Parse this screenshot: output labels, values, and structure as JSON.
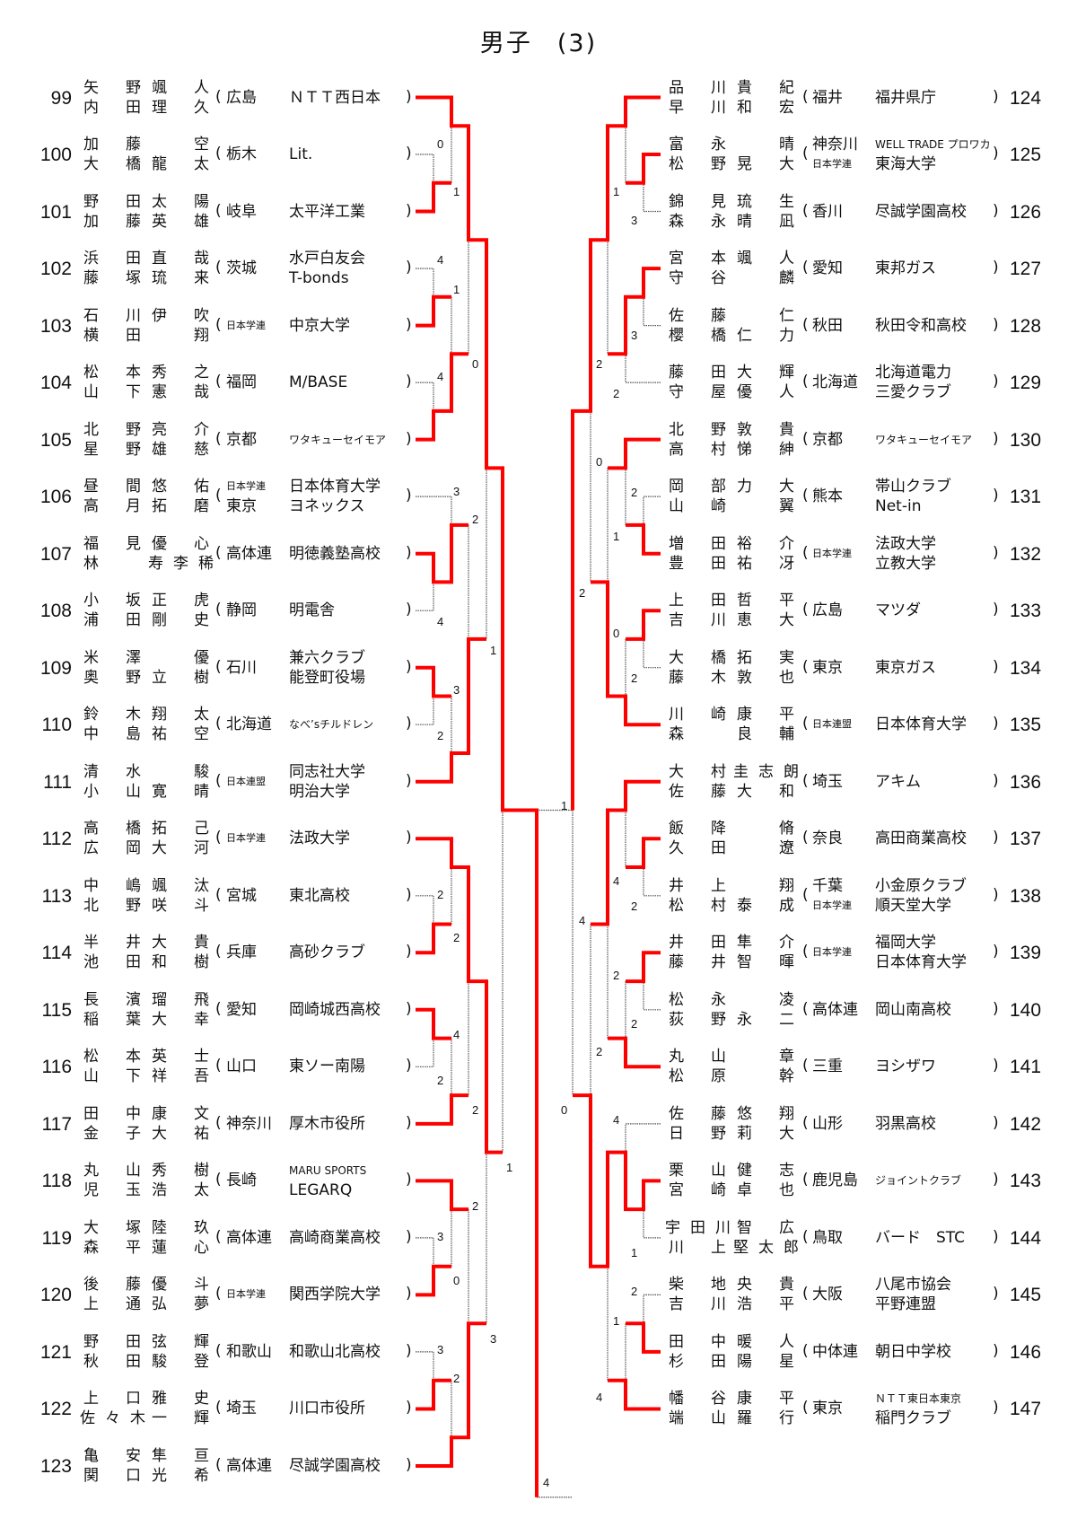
{
  "title": {
    "main": "男子",
    "sub": "(3)"
  },
  "colors": {
    "winner_line": "#ff0000",
    "loser_line": "#555555"
  },
  "left": [
    {
      "no": "99",
      "p1": [
        "矢野",
        "颯人"
      ],
      "p2": [
        "内田",
        "理久"
      ],
      "pref": [
        "広島"
      ],
      "team": [
        "ＮＴＴ西日本"
      ]
    },
    {
      "no": "100",
      "p1": [
        "加藤",
        "空"
      ],
      "p2": [
        "大橋",
        "龍太"
      ],
      "pref": [
        "栃木"
      ],
      "team": [
        "Lit."
      ]
    },
    {
      "no": "101",
      "p1": [
        "野田",
        "太陽"
      ],
      "p2": [
        "加藤",
        "英雄"
      ],
      "pref": [
        "岐阜"
      ],
      "team": [
        "太平洋工業"
      ]
    },
    {
      "no": "102",
      "p1": [
        "浜田",
        "直哉"
      ],
      "p2": [
        "藤塚",
        "琉来"
      ],
      "pref": [
        "茨城"
      ],
      "team": [
        "水戸白友会",
        "T-bonds"
      ]
    },
    {
      "no": "103",
      "p1": [
        "石川",
        "伊吹"
      ],
      "p2": [
        "横田",
        "翔"
      ],
      "pref": [
        "日本学連"
      ],
      "team": [
        "中京大学"
      ]
    },
    {
      "no": "104",
      "p1": [
        "松本",
        "秀之"
      ],
      "p2": [
        "山下",
        "憲哉"
      ],
      "pref": [
        "福岡"
      ],
      "team": [
        "M/BASE"
      ]
    },
    {
      "no": "105",
      "p1": [
        "北野",
        "亮介"
      ],
      "p2": [
        "星野",
        "雄慈"
      ],
      "pref": [
        "京都"
      ],
      "team": [
        "ワタキューセイモア"
      ]
    },
    {
      "no": "106",
      "p1": [
        "昼間",
        "悠佑"
      ],
      "p2": [
        "高月",
        "拓磨"
      ],
      "pref": [
        "日本学連",
        "東京"
      ],
      "team": [
        "日本体育大学",
        "ヨネックス"
      ]
    },
    {
      "no": "107",
      "p1": [
        "福見",
        "優心"
      ],
      "p2": [
        "林",
        "寿李稀"
      ],
      "pref": [
        "高体連"
      ],
      "team": [
        "明徳義塾高校"
      ]
    },
    {
      "no": "108",
      "p1": [
        "小坂",
        "正虎"
      ],
      "p2": [
        "浦田",
        "剛史"
      ],
      "pref": [
        "静岡"
      ],
      "team": [
        "明電舎"
      ]
    },
    {
      "no": "109",
      "p1": [
        "米澤",
        "優"
      ],
      "p2": [
        "奥野",
        "立樹"
      ],
      "pref": [
        "石川"
      ],
      "team": [
        "兼六クラブ",
        "能登町役場"
      ]
    },
    {
      "no": "110",
      "p1": [
        "鈴木",
        "翔太"
      ],
      "p2": [
        "中島",
        "祐空"
      ],
      "pref": [
        "北海道"
      ],
      "team": [
        "なべ’sチルドレン"
      ]
    },
    {
      "no": "111",
      "p1": [
        "清水",
        "駿"
      ],
      "p2": [
        "小山",
        "寛晴"
      ],
      "pref": [
        "日本連盟"
      ],
      "team": [
        "同志社大学",
        "明治大学"
      ]
    },
    {
      "no": "112",
      "p1": [
        "高橋",
        "拓己"
      ],
      "p2": [
        "広岡",
        "大河"
      ],
      "pref": [
        "日本学連"
      ],
      "team": [
        "法政大学"
      ]
    },
    {
      "no": "113",
      "p1": [
        "中嶋",
        "颯汰"
      ],
      "p2": [
        "北野",
        "咲斗"
      ],
      "pref": [
        "宮城"
      ],
      "team": [
        "東北高校"
      ]
    },
    {
      "no": "114",
      "p1": [
        "半井",
        "大貴"
      ],
      "p2": [
        "池田",
        "和樹"
      ],
      "pref": [
        "兵庫"
      ],
      "team": [
        "高砂クラブ"
      ]
    },
    {
      "no": "115",
      "p1": [
        "長濱",
        "瑠飛"
      ],
      "p2": [
        "稲葉",
        "大幸"
      ],
      "pref": [
        "愛知"
      ],
      "team": [
        "岡崎城西高校"
      ]
    },
    {
      "no": "116",
      "p1": [
        "松本",
        "英士"
      ],
      "p2": [
        "山下",
        "祥吾"
      ],
      "pref": [
        "山口"
      ],
      "team": [
        "東ソー南陽"
      ]
    },
    {
      "no": "117",
      "p1": [
        "田中",
        "康文"
      ],
      "p2": [
        "金子",
        "大祐"
      ],
      "pref": [
        "神奈川"
      ],
      "team": [
        "厚木市役所"
      ]
    },
    {
      "no": "118",
      "p1": [
        "丸山",
        "秀樹"
      ],
      "p2": [
        "児玉",
        "浩太"
      ],
      "pref": [
        "長崎"
      ],
      "team": [
        "MARU SPORTS",
        "LEGARQ"
      ]
    },
    {
      "no": "119",
      "p1": [
        "大塚",
        "陸玖"
      ],
      "p2": [
        "森平",
        "蓮心"
      ],
      "pref": [
        "高体連"
      ],
      "team": [
        "高崎商業高校"
      ]
    },
    {
      "no": "120",
      "p1": [
        "後藤",
        "優斗"
      ],
      "p2": [
        "上通",
        "弘夢"
      ],
      "pref": [
        "日本学連"
      ],
      "team": [
        "関西学院大学"
      ]
    },
    {
      "no": "121",
      "p1": [
        "野田",
        "弦輝"
      ],
      "p2": [
        "秋田",
        "駿登"
      ],
      "pref": [
        "和歌山"
      ],
      "team": [
        "和歌山北高校"
      ]
    },
    {
      "no": "122",
      "p1": [
        "上口",
        "雅史"
      ],
      "p2": [
        "佐々木",
        "一輝"
      ],
      "pref": [
        "埼玉"
      ],
      "team": [
        "川口市役所"
      ]
    },
    {
      "no": "123",
      "p1": [
        "亀安",
        "隼亘"
      ],
      "p2": [
        "関口",
        "光希"
      ],
      "pref": [
        "高体連"
      ],
      "team": [
        "尽誠学園高校"
      ]
    }
  ],
  "right": [
    {
      "no": "124",
      "p1": [
        "品川",
        "貴紀"
      ],
      "p2": [
        "早川",
        "和宏"
      ],
      "pref": [
        "福井"
      ],
      "team": [
        "福井県庁"
      ]
    },
    {
      "no": "125",
      "p1": [
        "富永",
        "晴"
      ],
      "p2": [
        "松野",
        "晃大"
      ],
      "pref": [
        "神奈川",
        "日本学連"
      ],
      "team": [
        "WELL TRADE プロワカ",
        "東海大学"
      ]
    },
    {
      "no": "126",
      "p1": [
        "錦見",
        "琉生"
      ],
      "p2": [
        "森永",
        "晴凪"
      ],
      "pref": [
        "香川"
      ],
      "team": [
        "尽誠学園高校"
      ]
    },
    {
      "no": "127",
      "p1": [
        "宮本",
        "颯人"
      ],
      "p2": [
        "守谷",
        "麟"
      ],
      "pref": [
        "愛知"
      ],
      "team": [
        "東邦ガス"
      ]
    },
    {
      "no": "128",
      "p1": [
        "佐藤",
        "仁"
      ],
      "p2": [
        "櫻橋",
        "仁力"
      ],
      "pref": [
        "秋田"
      ],
      "team": [
        "秋田令和高校"
      ]
    },
    {
      "no": "129",
      "p1": [
        "藤田",
        "大輝"
      ],
      "p2": [
        "守屋",
        "優人"
      ],
      "pref": [
        "北海道"
      ],
      "team": [
        "北海道電力",
        "三愛クラブ"
      ]
    },
    {
      "no": "130",
      "p1": [
        "北野",
        "敦貴"
      ],
      "p2": [
        "高村",
        "悌紳"
      ],
      "pref": [
        "京都"
      ],
      "team": [
        "ワタキューセイモア"
      ]
    },
    {
      "no": "131",
      "p1": [
        "岡部",
        "力大"
      ],
      "p2": [
        "山崎",
        "翼"
      ],
      "pref": [
        "熊本"
      ],
      "team": [
        "帯山クラブ",
        "Net-in"
      ]
    },
    {
      "no": "132",
      "p1": [
        "増田",
        "裕介"
      ],
      "p2": [
        "豊田",
        "祐冴"
      ],
      "pref": [
        "日本学連"
      ],
      "team": [
        "法政大学",
        "立教大学"
      ]
    },
    {
      "no": "133",
      "p1": [
        "上田",
        "哲平"
      ],
      "p2": [
        "吉川",
        "恵大"
      ],
      "pref": [
        "広島"
      ],
      "team": [
        "マツダ"
      ]
    },
    {
      "no": "134",
      "p1": [
        "大橋",
        "拓実"
      ],
      "p2": [
        "藤木",
        "敦也"
      ],
      "pref": [
        "東京"
      ],
      "team": [
        "東京ガス"
      ]
    },
    {
      "no": "135",
      "p1": [
        "川崎",
        "康平"
      ],
      "p2": [
        "森",
        "良輔"
      ],
      "pref": [
        "日本連盟"
      ],
      "team": [
        "日本体育大学"
      ]
    },
    {
      "no": "136",
      "p1": [
        "大村",
        "圭志朗"
      ],
      "p2": [
        "佐藤",
        "大和"
      ],
      "pref": [
        "埼玉"
      ],
      "team": [
        "アキム"
      ]
    },
    {
      "no": "137",
      "p1": [
        "飯降",
        "脩"
      ],
      "p2": [
        "久田",
        "遼"
      ],
      "pref": [
        "奈良"
      ],
      "team": [
        "高田商業高校"
      ]
    },
    {
      "no": "138",
      "p1": [
        "井上",
        "翔"
      ],
      "p2": [
        "松村",
        "泰成"
      ],
      "pref": [
        "千葉",
        "日本学連"
      ],
      "team": [
        "小金原クラブ",
        "順天堂大学"
      ]
    },
    {
      "no": "139",
      "p1": [
        "井田",
        "隼介"
      ],
      "p2": [
        "藤井",
        "智暉"
      ],
      "pref": [
        "日本学連"
      ],
      "team": [
        "福岡大学",
        "日本体育大学"
      ]
    },
    {
      "no": "140",
      "p1": [
        "松永",
        "凌"
      ],
      "p2": [
        "荻野",
        "永二"
      ],
      "pref": [
        "高体連"
      ],
      "team": [
        "岡山南高校"
      ]
    },
    {
      "no": "141",
      "p1": [
        "丸山",
        "章"
      ],
      "p2": [
        "松原",
        "幹"
      ],
      "pref": [
        "三重"
      ],
      "team": [
        "ヨシザワ"
      ]
    },
    {
      "no": "142",
      "p1": [
        "佐藤",
        "悠翔"
      ],
      "p2": [
        "日野",
        "莉大"
      ],
      "pref": [
        "山形"
      ],
      "team": [
        "羽黒高校"
      ]
    },
    {
      "no": "143",
      "p1": [
        "栗山",
        "健志"
      ],
      "p2": [
        "宮崎",
        "卓也"
      ],
      "pref": [
        "鹿児島"
      ],
      "team": [
        "ジョイントクラブ"
      ]
    },
    {
      "no": "144",
      "p1": [
        "宇田川",
        "智広"
      ],
      "p2": [
        "川上",
        "堅太郎"
      ],
      "pref": [
        "鳥取"
      ],
      "team": [
        "バード　STC"
      ]
    },
    {
      "no": "145",
      "p1": [
        "柴地",
        "央貴"
      ],
      "p2": [
        "吉川",
        "浩平"
      ],
      "pref": [
        "大阪"
      ],
      "team": [
        "八尾市協会",
        "平野連盟"
      ]
    },
    {
      "no": "146",
      "p1": [
        "田中",
        "暖人"
      ],
      "p2": [
        "杉田",
        "陽星"
      ],
      "pref": [
        "中体連"
      ],
      "team": [
        "朝日中学校"
      ]
    },
    {
      "no": "147",
      "p1": [
        "幡谷",
        "康平"
      ],
      "p2": [
        "端山",
        "羅行"
      ],
      "pref": [
        "東京"
      ],
      "team": [
        "ＮＴＴ東日本東京",
        "稲門クラブ"
      ]
    }
  ],
  "scores_left": [
    "0",
    "1",
    "4",
    "1",
    "0",
    "4",
    "3",
    "2",
    "4",
    "1",
    "3",
    "2",
    "2",
    "2",
    "4",
    "2",
    "2",
    "1",
    "2",
    "3",
    "0",
    "3",
    "3",
    "2"
  ],
  "scores_right": [
    "1",
    "3",
    "2",
    "3",
    "2",
    "0",
    "2",
    "1",
    "2",
    "0",
    "2",
    "4",
    "2",
    "4",
    "2",
    "2",
    "2",
    "0",
    "4",
    "1",
    "2",
    "1",
    "4"
  ],
  "scores_final": [
    "1",
    "4"
  ]
}
